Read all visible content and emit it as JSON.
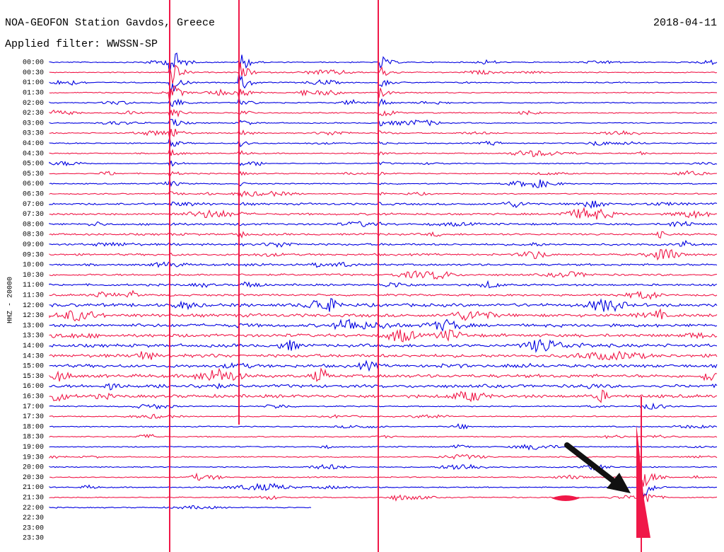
{
  "header": {
    "title": "NOA-GEOFON Station Gavdos, Greece",
    "date": "2018-04-11",
    "filter": "Applied filter: WWSSN-SP"
  },
  "axis_label": "HHZ - 20000",
  "times": [
    "00:00",
    "00:30",
    "01:00",
    "01:30",
    "02:00",
    "02:30",
    "03:00",
    "03:30",
    "04:00",
    "04:30",
    "05:00",
    "05:30",
    "06:00",
    "06:30",
    "07:00",
    "07:30",
    "08:00",
    "08:30",
    "09:00",
    "09:30",
    "10:00",
    "10:30",
    "11:00",
    "11:30",
    "12:00",
    "12:30",
    "13:00",
    "13:30",
    "14:00",
    "14:30",
    "15:00",
    "15:30",
    "16:00",
    "16:30",
    "17:00",
    "17:30",
    "18:00",
    "18:30",
    "19:00",
    "19:30",
    "20:00",
    "20:30",
    "21:00",
    "21:30",
    "22:00",
    "22:30",
    "23:00",
    "23:30"
  ]
}
